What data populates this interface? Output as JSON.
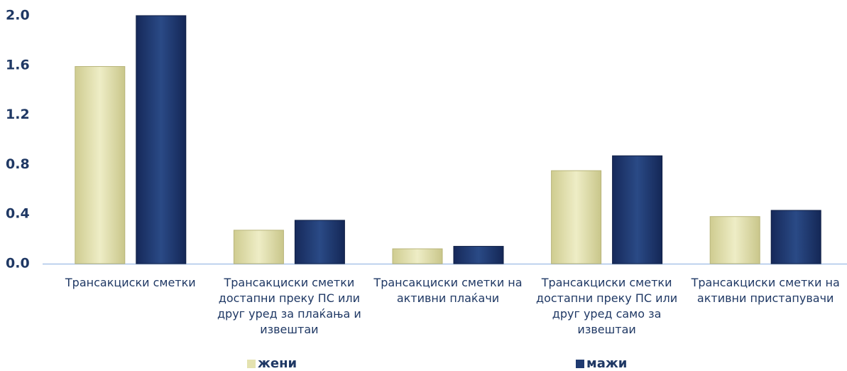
{
  "chart_data": {
    "type": "bar",
    "categories": [
      "Трансакциски сметки",
      "Трансакциски сметки достапни преку ПС или друг уред за плаќања и извештаи",
      "Трансакциски сметки на активни плаќачи",
      "Трансакциски сметки достапни преку ПС или друг уред само за извештаи",
      "Трансакциски сметки на активни пристапувачи"
    ],
    "series": [
      {
        "name": "жени",
        "color": "#e4e2b0",
        "values": [
          1.59,
          0.27,
          0.12,
          0.75,
          0.38
        ]
      },
      {
        "name": "мажи",
        "color": "#1f3a70",
        "values": [
          2.0,
          0.35,
          0.14,
          0.87,
          0.43
        ]
      }
    ],
    "ylim": [
      0,
      2.0
    ],
    "yticks": [
      {
        "value": 0,
        "label": "0.0"
      },
      0.4,
      0.8,
      1.2,
      1.6,
      {
        "value": 2.0,
        "label": "2.0"
      }
    ],
    "legend": "bottom"
  }
}
